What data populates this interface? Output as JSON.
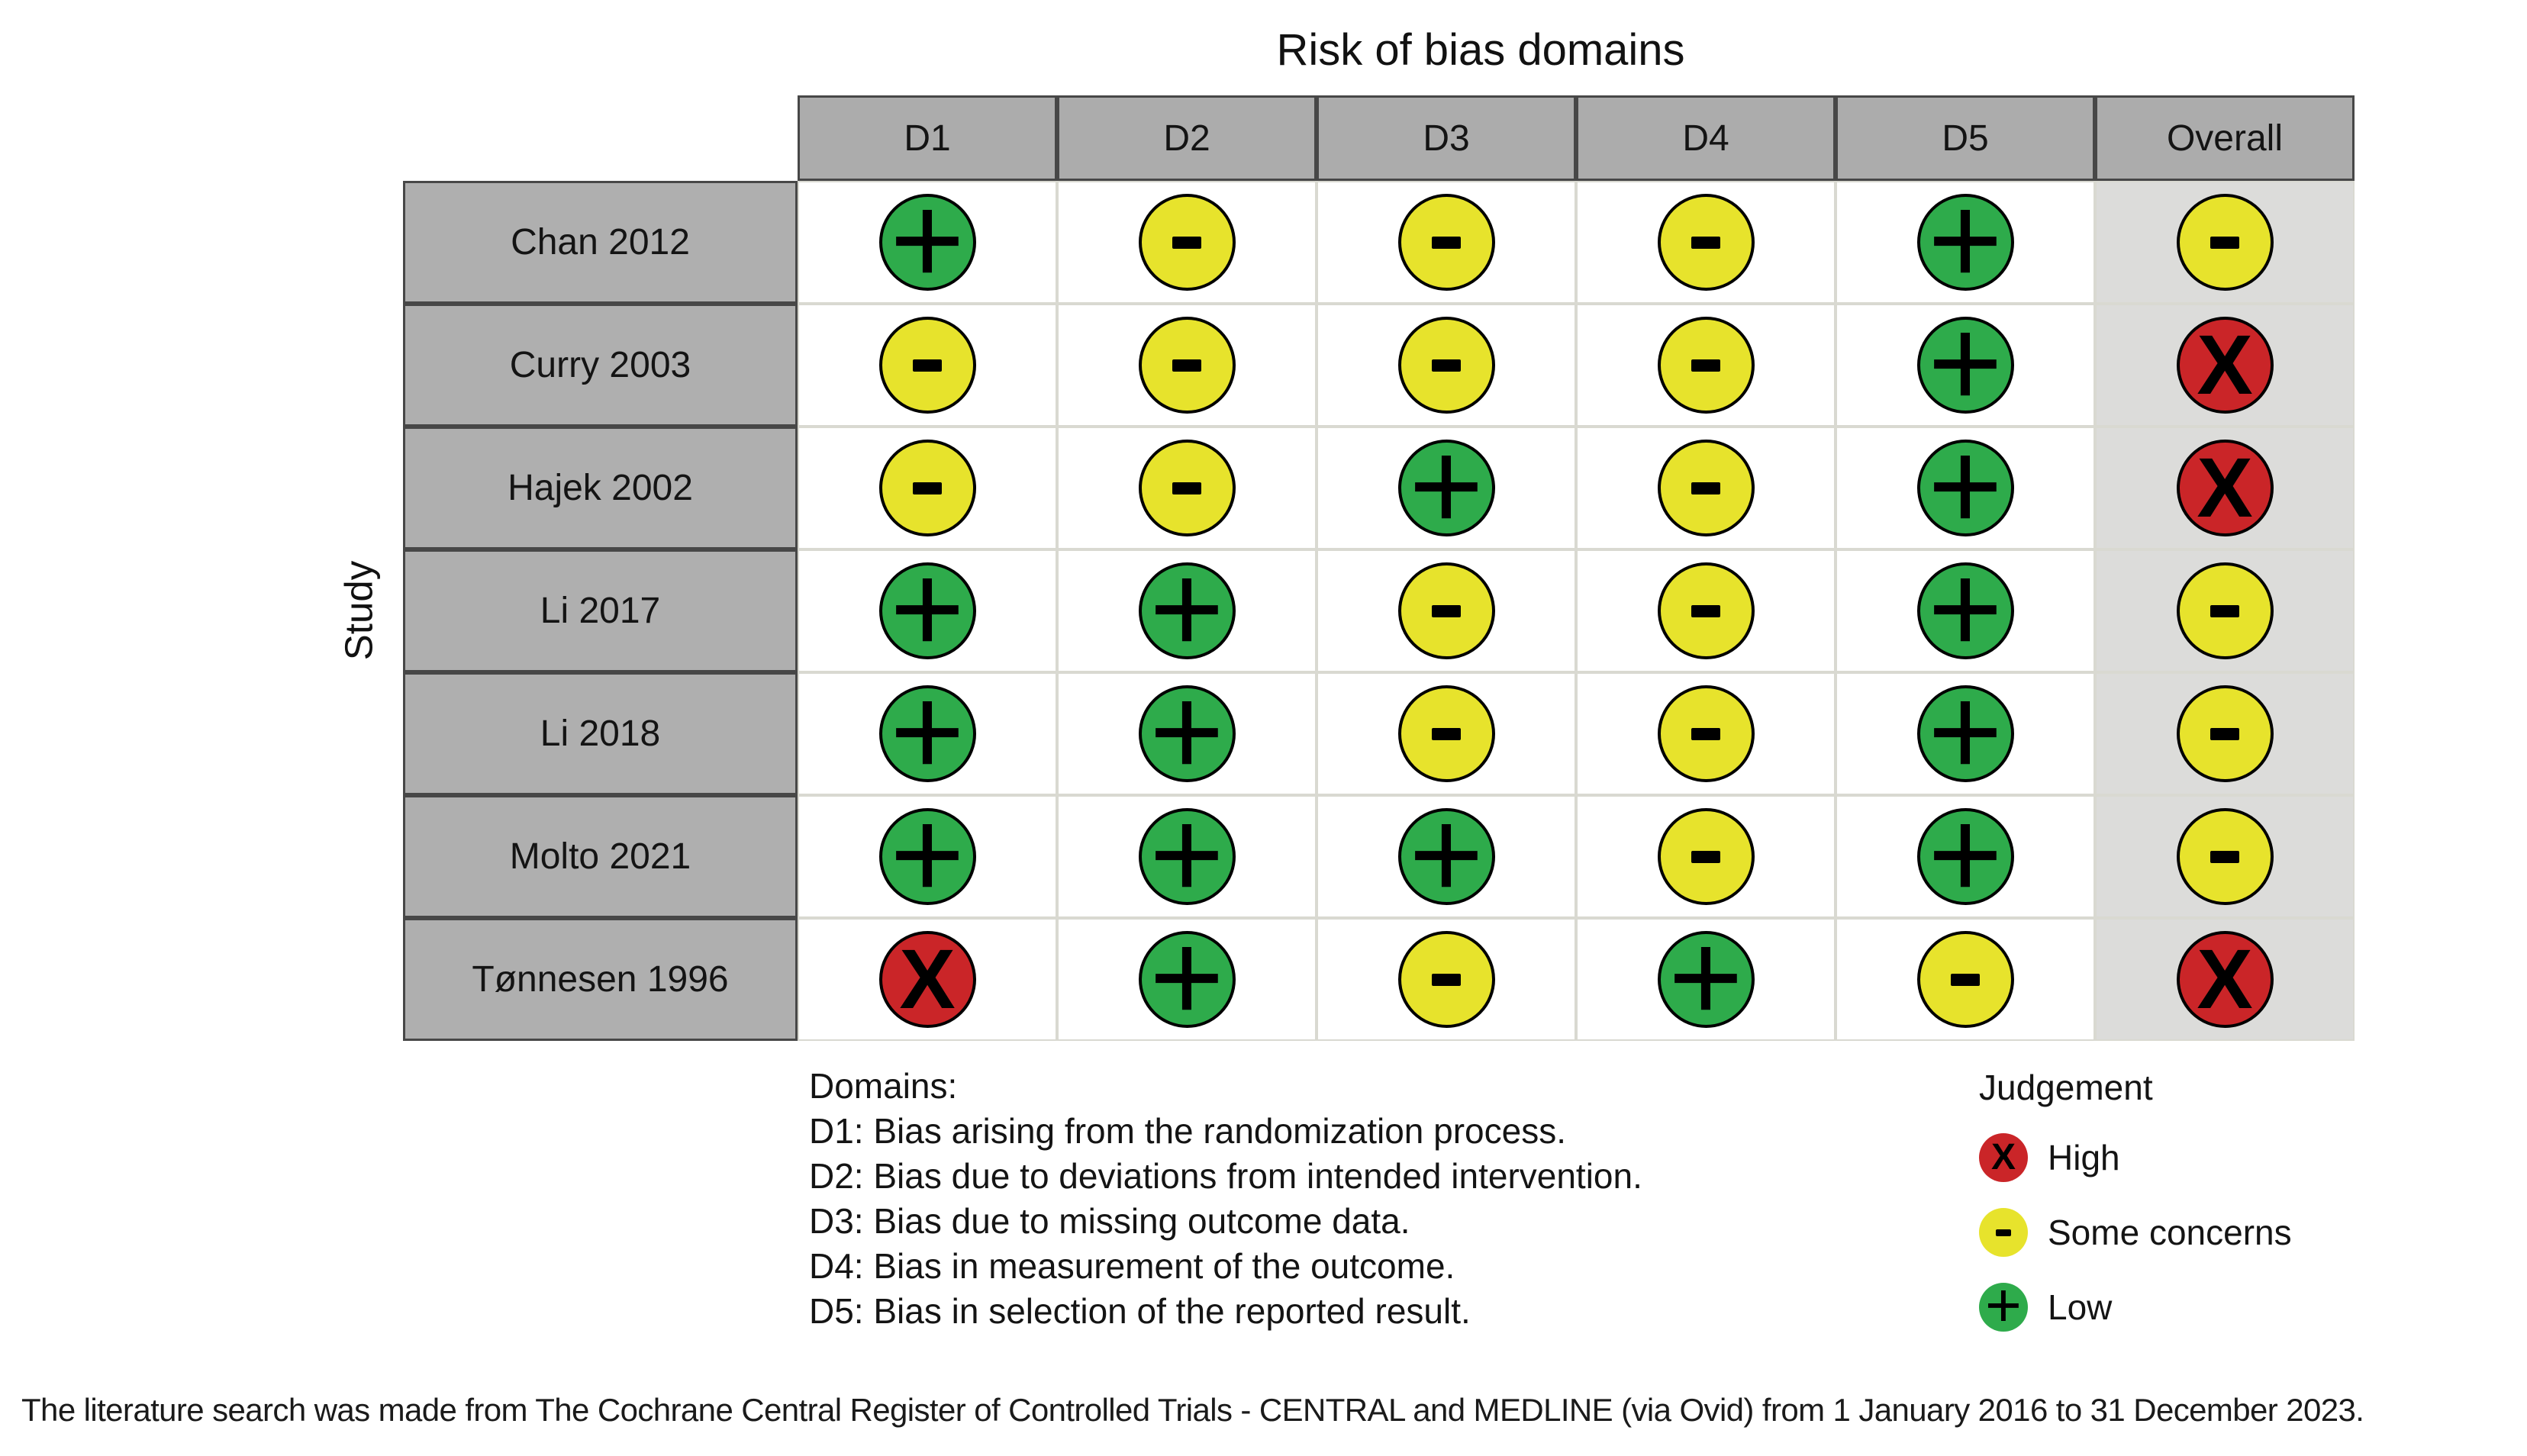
{
  "title": "Risk of bias domains",
  "table": {
    "corner_label": "Study",
    "columns": [
      "D1",
      "D2",
      "D3",
      "D4",
      "D5",
      "Overall"
    ],
    "rows": [
      {
        "study": "Chan 2012",
        "judgements": [
          "low",
          "some",
          "some",
          "some",
          "low",
          "some"
        ]
      },
      {
        "study": "Curry 2003",
        "judgements": [
          "some",
          "some",
          "some",
          "some",
          "low",
          "high"
        ]
      },
      {
        "study": "Hajek 2002",
        "judgements": [
          "some",
          "some",
          "low",
          "some",
          "low",
          "high"
        ]
      },
      {
        "study": "Li 2017",
        "judgements": [
          "low",
          "low",
          "some",
          "some",
          "low",
          "some"
        ]
      },
      {
        "study": "Li 2018",
        "judgements": [
          "low",
          "low",
          "some",
          "some",
          "low",
          "some"
        ]
      },
      {
        "study": "Molto 2021",
        "judgements": [
          "low",
          "low",
          "low",
          "some",
          "low",
          "some"
        ]
      },
      {
        "study": "Tønnesen 1996",
        "judgements": [
          "high",
          "low",
          "some",
          "low",
          "some",
          "high"
        ]
      }
    ]
  },
  "symbols": {
    "low": "+",
    "some": "-",
    "high": "X"
  },
  "colors": {
    "low": "#2eab4b",
    "some": "#e7e32c",
    "high": "#ca2528",
    "header_gray": "#acacac",
    "overall_column_bg": "#dcdcda"
  },
  "domains_legend": {
    "title": "Domains:",
    "lines": [
      "D1: Bias arising from the randomization process.",
      "D2: Bias due to deviations from intended intervention.",
      "D3: Bias due to missing outcome data.",
      "D4: Bias in measurement of the outcome.",
      "D5: Bias in selection of the reported result."
    ]
  },
  "judgement_legend": {
    "title": "Judgement",
    "items": [
      {
        "key": "high",
        "symbol": "X",
        "label": "High"
      },
      {
        "key": "some",
        "symbol": "-",
        "label": "Some concerns"
      },
      {
        "key": "low",
        "symbol": "+",
        "label": "Low"
      }
    ]
  },
  "caption": "The literature search was made from The Cochrane Central Register of Controlled Trials - CENTRAL and MEDLINE (via Ovid) from 1 January 2016 to 31 December 2023.",
  "chart_data": {
    "type": "table",
    "title": "Risk of bias domains",
    "x_categories": [
      "D1",
      "D2",
      "D3",
      "D4",
      "D5",
      "Overall"
    ],
    "y_categories": [
      "Chan 2012",
      "Curry 2003",
      "Hajek 2002",
      "Li 2017",
      "Li 2018",
      "Molto 2021",
      "Tønnesen 1996"
    ],
    "values": [
      [
        "Low",
        "Some concerns",
        "Some concerns",
        "Some concerns",
        "Low",
        "Some concerns"
      ],
      [
        "Some concerns",
        "Some concerns",
        "Some concerns",
        "Some concerns",
        "Low",
        "High"
      ],
      [
        "Some concerns",
        "Some concerns",
        "Low",
        "Some concerns",
        "Low",
        "High"
      ],
      [
        "Low",
        "Low",
        "Some concerns",
        "Some concerns",
        "Low",
        "Some concerns"
      ],
      [
        "Low",
        "Low",
        "Some concerns",
        "Some concerns",
        "Low",
        "Some concerns"
      ],
      [
        "Low",
        "Low",
        "Low",
        "Some concerns",
        "Low",
        "Some concerns"
      ],
      [
        "High",
        "Low",
        "Some concerns",
        "Low",
        "Some concerns",
        "High"
      ]
    ],
    "legend": [
      {
        "label": "High",
        "symbol": "X",
        "color": "#ca2528"
      },
      {
        "label": "Some concerns",
        "symbol": "-",
        "color": "#e7e32c"
      },
      {
        "label": "Low",
        "symbol": "+",
        "color": "#2eab4b"
      }
    ],
    "legend_position": "bottom-right",
    "grid": true
  }
}
